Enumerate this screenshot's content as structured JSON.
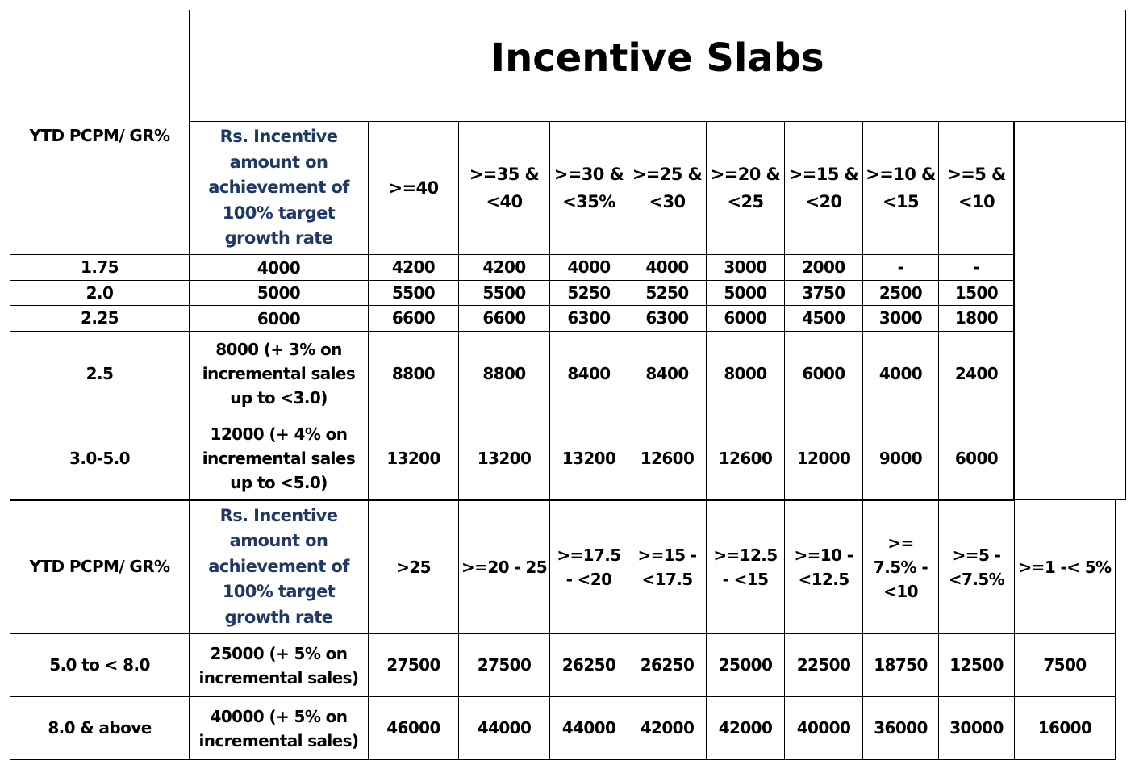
{
  "title": "Incentive Slabs",
  "row_label": "YTD PCPM/ GR%",
  "amount_header": "Rs. Incentive amount on achievement of 100% target growth rate",
  "section1": {
    "slabs": [
      ">=40",
      ">=35 & <40",
      ">=30 & <35%",
      ">=25 & <30",
      ">=20 & <25",
      ">=15 & <20",
      ">=10 & <15",
      ">=5 & <10"
    ],
    "rows": [
      {
        "pcpm": "1.75",
        "amount": "4000",
        "values": [
          "4200",
          "4200",
          "4000",
          "4000",
          "3000",
          "2000",
          "-",
          "-"
        ]
      },
      {
        "pcpm": "2.0",
        "amount": "5000",
        "values": [
          "5500",
          "5500",
          "5250",
          "5250",
          "5000",
          "3750",
          "2500",
          "1500"
        ]
      },
      {
        "pcpm": "2.25",
        "amount": "6000",
        "values": [
          "6600",
          "6600",
          "6300",
          "6300",
          "6000",
          "4500",
          "3000",
          "1800"
        ]
      },
      {
        "pcpm": "2.5",
        "amount": "8000 (+ 3% on incremental sales up to <3.0)",
        "values": [
          "8800",
          "8800",
          "8400",
          "8400",
          "8000",
          "6000",
          "4000",
          "2400"
        ]
      },
      {
        "pcpm": "3.0-5.0",
        "amount": "12000 (+ 4% on incremental sales up to <5.0)",
        "values": [
          "13200",
          "13200",
          "13200",
          "12600",
          "12600",
          "12000",
          "9000",
          "6000"
        ]
      }
    ]
  },
  "section2": {
    "slabs": [
      ">25",
      ">=20 - 25",
      ">=17.5 - <20",
      ">=15 - <17.5",
      ">=12.5 - <15",
      ">=10 - <12.5",
      ">= 7.5% - <10",
      ">=5 - <7.5%",
      ">=1 -< 5%"
    ],
    "rows": [
      {
        "pcpm": "5.0 to < 8.0",
        "amount": "25000 (+ 5% on incremental sales)",
        "values": [
          "27500",
          "27500",
          "26250",
          "26250",
          "25000",
          "22500",
          "18750",
          "12500",
          "7500"
        ]
      },
      {
        "pcpm": "8.0 & above",
        "amount": "40000 (+ 5% on incremental sales)",
        "values": [
          "46000",
          "44000",
          "44000",
          "42000",
          "42000",
          "40000",
          "36000",
          "30000",
          "16000"
        ]
      }
    ]
  }
}
